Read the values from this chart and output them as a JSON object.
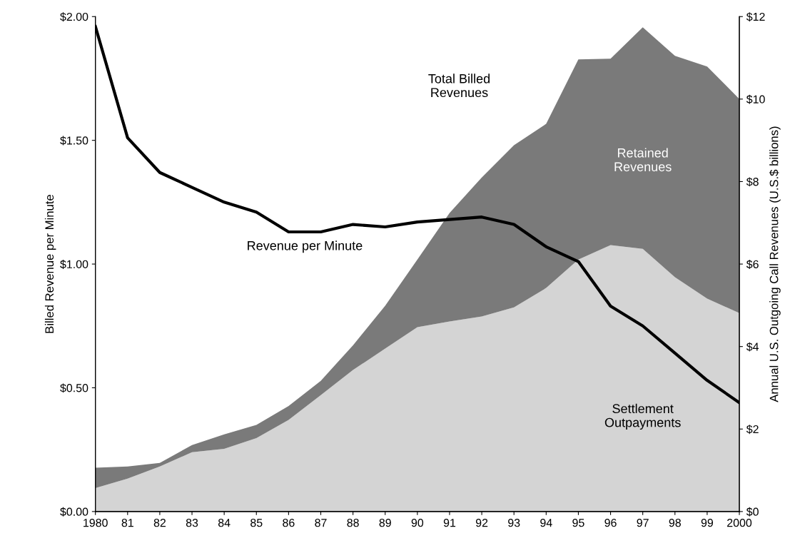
{
  "chart_data": {
    "type": "area",
    "stacked": true,
    "categories": [
      "1980",
      "81",
      "82",
      "83",
      "84",
      "85",
      "86",
      "87",
      "88",
      "89",
      "90",
      "91",
      "92",
      "93",
      "94",
      "95",
      "96",
      "97",
      "98",
      "99",
      "2000"
    ],
    "ylabel": "Billed Revenue per Minute",
    "y2label": "Annual U.S. Outgoing Call Revenues (U.S.$ billions)",
    "ylim": [
      0,
      2
    ],
    "yticks": [
      {
        "value": 0,
        "label": "$0.00"
      },
      {
        "value": 0.5,
        "label": "$0.50"
      },
      {
        "value": 1,
        "label": "$1.00"
      },
      {
        "value": 1.5,
        "label": "$1.50"
      },
      {
        "value": 2,
        "label": "$2.00"
      }
    ],
    "y2lim": [
      0,
      12
    ],
    "y2ticks": [
      {
        "value": 0,
        "label": "$0"
      },
      {
        "value": 2,
        "label": "$2"
      },
      {
        "value": 4,
        "label": "$4"
      },
      {
        "value": 6,
        "label": "$6"
      },
      {
        "value": 8,
        "label": "$8"
      },
      {
        "value": 10,
        "label": "$10"
      },
      {
        "value": 12,
        "label": "$12"
      }
    ],
    "series": [
      {
        "name": "Settlement Outpayments",
        "axis": "y2",
        "color": "#d4d4d4",
        "values": [
          0.57,
          0.8,
          1.09,
          1.44,
          1.52,
          1.78,
          2.22,
          2.82,
          3.43,
          3.95,
          4.47,
          4.61,
          4.73,
          4.95,
          5.42,
          6.11,
          6.46,
          6.37,
          5.68,
          5.16,
          4.81
        ]
      },
      {
        "name": "Retained Revenues",
        "axis": "y2",
        "color": "#7a7a7a",
        "values": [
          0.49,
          0.29,
          0.09,
          0.17,
          0.35,
          0.32,
          0.34,
          0.35,
          0.6,
          1.04,
          1.64,
          2.63,
          3.37,
          3.93,
          3.98,
          4.85,
          4.52,
          5.37,
          5.37,
          5.63,
          5.19
        ]
      },
      {
        "name": "Revenue per Minute",
        "type": "line",
        "axis": "y",
        "color": "#000000",
        "values": [
          1.96,
          1.51,
          1.37,
          1.31,
          1.25,
          1.21,
          1.13,
          1.13,
          1.16,
          1.15,
          1.17,
          1.18,
          1.19,
          1.16,
          1.07,
          1.01,
          0.83,
          0.75,
          0.64,
          0.53,
          0.44
        ]
      }
    ],
    "annotations": [
      "Total Billed Revenues"
    ],
    "grid": false,
    "legend": false
  }
}
